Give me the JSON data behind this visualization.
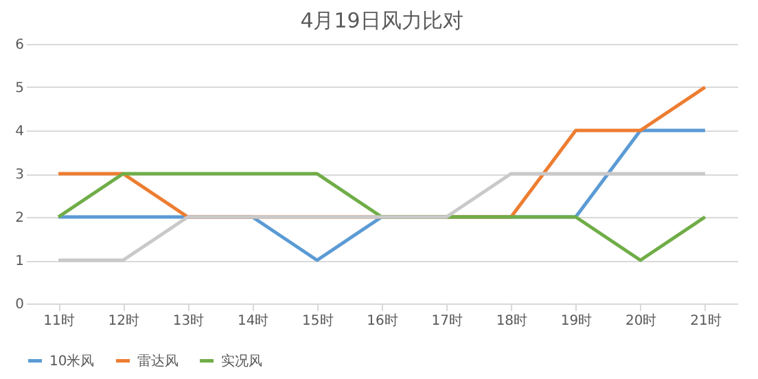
{
  "chart_data": {
    "type": "line",
    "title": "4月19日风力比对",
    "categories": [
      "11时",
      "12时",
      "13时",
      "14时",
      "15时",
      "16时",
      "17时",
      "18时",
      "19时",
      "20时",
      "21时"
    ],
    "series": [
      {
        "name": "10米风",
        "color": "#5b9bd5",
        "values": [
          2,
          2,
          2,
          2,
          1,
          2,
          2,
          2,
          2,
          4,
          4
        ]
      },
      {
        "name": "雷达风",
        "color": "#ed7d31",
        "values": [
          3,
          3,
          2,
          2,
          2,
          2,
          2,
          2,
          4,
          4,
          5
        ]
      },
      {
        "name": "实况风",
        "color": "#70ad47",
        "values": [
          2,
          3,
          3,
          3,
          3,
          2,
          2,
          2,
          2,
          1,
          2
        ]
      },
      {
        "color": "#c9c9c9",
        "values": [
          1,
          1,
          2,
          2,
          2,
          2,
          2,
          3,
          3,
          3,
          3
        ]
      }
    ],
    "ylim": [
      0,
      6
    ],
    "yticks": [
      0,
      1,
      2,
      3,
      4,
      5,
      6
    ],
    "grid": "y",
    "legend": "bottom",
    "marker": "none",
    "line_style": "solid"
  }
}
